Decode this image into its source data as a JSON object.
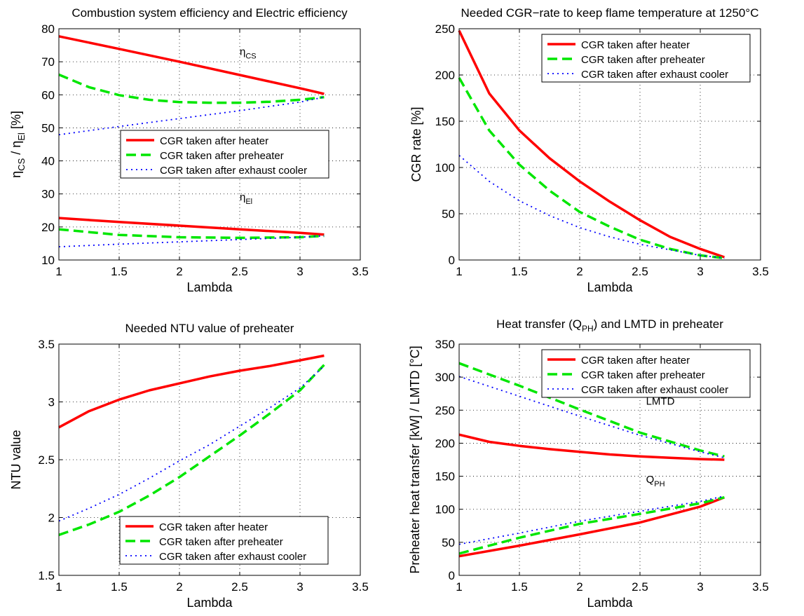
{
  "colors": {
    "heater": "#ff0000",
    "preheater": "#00e600",
    "exhaust": "#0000ff",
    "axis": "#000000",
    "grid": "#000000"
  },
  "chart_data": [
    {
      "type": "line",
      "title": "Combustion system efficiency and Electric efficiency",
      "xlabel": "Lambda",
      "ylabel": "η_CS / η_El [%]",
      "xlim": [
        1,
        3.5
      ],
      "ylim": [
        10,
        80
      ],
      "xticks": [
        "1",
        "1.5",
        "2",
        "2.5",
        "3",
        "3.5"
      ],
      "yticks": [
        "10",
        "20",
        "30",
        "40",
        "50",
        "60",
        "70",
        "80"
      ],
      "grid": true,
      "legend_position": "center",
      "legend": [
        "CGR taken after heater",
        "CGR taken after preheater",
        "CGR taken after exhaust cooler"
      ],
      "annotations": [
        {
          "base": "η",
          "sub": "CS",
          "x": 2.5,
          "y": 72
        },
        {
          "base": "η",
          "sub": "El",
          "x": 2.5,
          "y": 28
        }
      ],
      "series": [
        {
          "legend": 0,
          "style": "heater",
          "x": [
            1,
            1.5,
            2,
            2.5,
            3,
            3.2
          ],
          "y": [
            77.7,
            73.9,
            70.0,
            66.0,
            62.0,
            60.3
          ]
        },
        {
          "legend": 1,
          "style": "preheater",
          "x": [
            1,
            1.25,
            1.5,
            1.75,
            2,
            2.25,
            2.5,
            2.75,
            3,
            3.2
          ],
          "y": [
            66.1,
            62.3,
            59.9,
            58.5,
            57.8,
            57.6,
            57.6,
            57.9,
            58.5,
            59.3
          ]
        },
        {
          "legend": 2,
          "style": "exhaust",
          "x": [
            1,
            1.5,
            2,
            2.5,
            3,
            3.2
          ],
          "y": [
            47.9,
            50.4,
            52.8,
            55.2,
            57.8,
            59.3
          ]
        },
        {
          "style": "heater",
          "x": [
            1,
            1.5,
            2,
            2.5,
            3,
            3.2
          ],
          "y": [
            22.7,
            21.5,
            20.4,
            19.3,
            18.2,
            17.7
          ]
        },
        {
          "style": "preheater",
          "x": [
            1,
            1.5,
            2,
            2.5,
            3,
            3.2
          ],
          "y": [
            19.3,
            17.6,
            16.9,
            16.7,
            16.9,
            17.3
          ]
        },
        {
          "style": "exhaust",
          "x": [
            1,
            1.5,
            2,
            2.5,
            3,
            3.2
          ],
          "y": [
            14.0,
            14.8,
            15.5,
            16.2,
            16.9,
            17.3
          ]
        }
      ]
    },
    {
      "type": "line",
      "title": "Needed CGR−rate to keep flame temperature at 1250°C",
      "xlabel": "Lambda",
      "ylabel": "CGR rate [%]",
      "xlim": [
        1,
        3.5
      ],
      "ylim": [
        0,
        250
      ],
      "xticks": [
        "1",
        "1.5",
        "2",
        "2.5",
        "3",
        "3.5"
      ],
      "yticks": [
        "0",
        "50",
        "100",
        "150",
        "200",
        "250"
      ],
      "grid": true,
      "legend_position": "top-right",
      "legend": [
        "CGR taken after heater",
        "CGR taken after preheater",
        "CGR taken after exhaust cooler"
      ],
      "series": [
        {
          "legend": 0,
          "style": "heater",
          "x": [
            1,
            1.25,
            1.5,
            1.75,
            2,
            2.25,
            2.5,
            2.75,
            3,
            3.2
          ],
          "y": [
            248,
            180,
            140,
            110,
            85,
            63,
            43,
            25,
            12,
            3
          ]
        },
        {
          "legend": 1,
          "style": "preheater",
          "x": [
            1,
            1.25,
            1.5,
            1.75,
            2,
            2.25,
            2.5,
            2.75,
            3,
            3.2
          ],
          "y": [
            197,
            140,
            103,
            75,
            52,
            36,
            22,
            12,
            5,
            2
          ]
        },
        {
          "legend": 2,
          "style": "exhaust",
          "x": [
            1,
            1.25,
            1.5,
            1.75,
            2,
            2.25,
            2.5,
            2.75,
            3,
            3.2
          ],
          "y": [
            113,
            85,
            64,
            48,
            35,
            25,
            17,
            11,
            5,
            2
          ]
        }
      ]
    },
    {
      "type": "line",
      "title": "Needed NTU value of preheater",
      "xlabel": "Lambda",
      "ylabel": "NTU value",
      "xlim": [
        1,
        3.5
      ],
      "ylim": [
        1.5,
        3.5
      ],
      "xticks": [
        "1",
        "1.5",
        "2",
        "2.5",
        "3",
        "3.5"
      ],
      "yticks": [
        "1.5",
        "2",
        "2.5",
        "3",
        "3.5"
      ],
      "grid": true,
      "legend_position": "bottom-right",
      "legend": [
        "CGR taken after heater",
        "CGR taken after preheater",
        "CGR taken after exhaust cooler"
      ],
      "series": [
        {
          "legend": 0,
          "style": "heater",
          "x": [
            1,
            1.25,
            1.5,
            1.75,
            2,
            2.25,
            2.5,
            2.75,
            3,
            3.2
          ],
          "y": [
            2.78,
            2.92,
            3.02,
            3.1,
            3.16,
            3.22,
            3.27,
            3.31,
            3.36,
            3.4
          ]
        },
        {
          "legend": 1,
          "style": "preheater",
          "x": [
            1,
            1.25,
            1.5,
            1.75,
            2,
            2.25,
            2.5,
            2.75,
            3,
            3.2
          ],
          "y": [
            1.85,
            1.94,
            2.05,
            2.19,
            2.35,
            2.53,
            2.71,
            2.9,
            3.1,
            3.32
          ]
        },
        {
          "legend": 2,
          "style": "exhaust",
          "x": [
            1,
            1.25,
            1.5,
            1.75,
            2,
            2.25,
            2.5,
            2.75,
            3,
            3.2
          ],
          "y": [
            1.97,
            2.08,
            2.2,
            2.34,
            2.49,
            2.63,
            2.79,
            2.95,
            3.12,
            3.31
          ]
        }
      ]
    },
    {
      "type": "line",
      "title": "Heat transfer (Q_PH) and LMTD in preheater",
      "xlabel": "Lambda",
      "ylabel": "Preheater heat transfer [kW] / LMTD [°C]",
      "xlim": [
        1,
        3.5
      ],
      "ylim": [
        0,
        350
      ],
      "xticks": [
        "1",
        "1.5",
        "2",
        "2.5",
        "3",
        "3.5"
      ],
      "yticks": [
        "0",
        "50",
        "100",
        "150",
        "200",
        "250",
        "300",
        "350"
      ],
      "grid": true,
      "legend_position": "top-right",
      "legend": [
        "CGR taken after heater",
        "CGR taken after preheater",
        "CGR taken after exhaust cooler"
      ],
      "annotations": [
        {
          "base": "LMTD",
          "sub": "",
          "x": 2.55,
          "y": 258
        },
        {
          "base": "Q",
          "sub": "PH",
          "x": 2.55,
          "y": 140
        }
      ],
      "series": [
        {
          "legend": 0,
          "style": "heater",
          "x": [
            1,
            1.25,
            1.5,
            1.75,
            2,
            2.25,
            2.5,
            2.75,
            3,
            3.2
          ],
          "y": [
            213,
            202,
            196,
            191,
            187,
            183,
            180,
            178,
            176,
            175
          ]
        },
        {
          "legend": 1,
          "style": "preheater",
          "x": [
            1,
            1.5,
            2,
            2.5,
            3,
            3.2
          ],
          "y": [
            321,
            287,
            251,
            216,
            189,
            180
          ]
        },
        {
          "legend": 2,
          "style": "exhaust",
          "x": [
            1,
            1.5,
            2,
            2.5,
            3,
            3.2
          ],
          "y": [
            301,
            271,
            241,
            212,
            187,
            178
          ]
        },
        {
          "style": "heater",
          "x": [
            1,
            1.5,
            2,
            2.5,
            3,
            3.2
          ],
          "y": [
            29,
            45,
            62,
            80,
            104,
            118
          ]
        },
        {
          "style": "preheater",
          "x": [
            1,
            1.5,
            2,
            2.5,
            3,
            3.2
          ],
          "y": [
            33,
            57,
            78,
            93,
            109,
            118
          ]
        },
        {
          "style": "exhaust",
          "x": [
            1,
            1.5,
            2,
            2.5,
            3,
            3.2
          ],
          "y": [
            47,
            64,
            82,
            97,
            112,
            120
          ]
        }
      ]
    }
  ]
}
